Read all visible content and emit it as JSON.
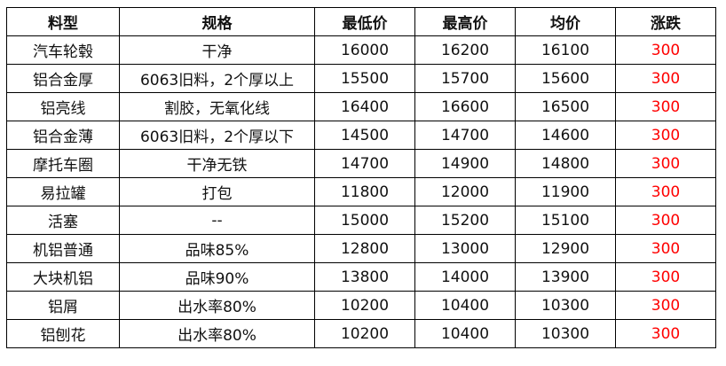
{
  "headers": [
    "料型",
    "规格",
    "最低价",
    "最高价",
    "均价",
    "涨跌"
  ],
  "rows": [
    [
      "汽车轮毂",
      "干净",
      "16000",
      "16200",
      "16100",
      "300"
    ],
    [
      "铝合金厚",
      "6063旧料，2个厚以上",
      "15500",
      "15700",
      "15600",
      "300"
    ],
    [
      "铝亮线",
      "割胶，无氧化线",
      "16400",
      "16600",
      "16500",
      "300"
    ],
    [
      "铝合金薄",
      "6063旧料，2个厚以下",
      "14500",
      "14700",
      "14600",
      "300"
    ],
    [
      "摩托车圈",
      "干净无铁",
      "14700",
      "14900",
      "14800",
      "300"
    ],
    [
      "易拉罐",
      "打包",
      "11800",
      "12000",
      "11900",
      "300"
    ],
    [
      "活塞",
      "--",
      "15000",
      "15200",
      "15100",
      "300"
    ],
    [
      "机铝普通",
      "品味85%",
      "12800",
      "13000",
      "12900",
      "300"
    ],
    [
      "大块机铝",
      "品味90%",
      "13800",
      "14000",
      "13900",
      "300"
    ],
    [
      "铝屑",
      "出水率80%",
      "10200",
      "10400",
      "10300",
      "300"
    ],
    [
      "铝刨花",
      "出水率80%",
      "10200",
      "10400",
      "10300",
      "300"
    ]
  ],
  "colors": {
    "change": "#ff0000"
  }
}
